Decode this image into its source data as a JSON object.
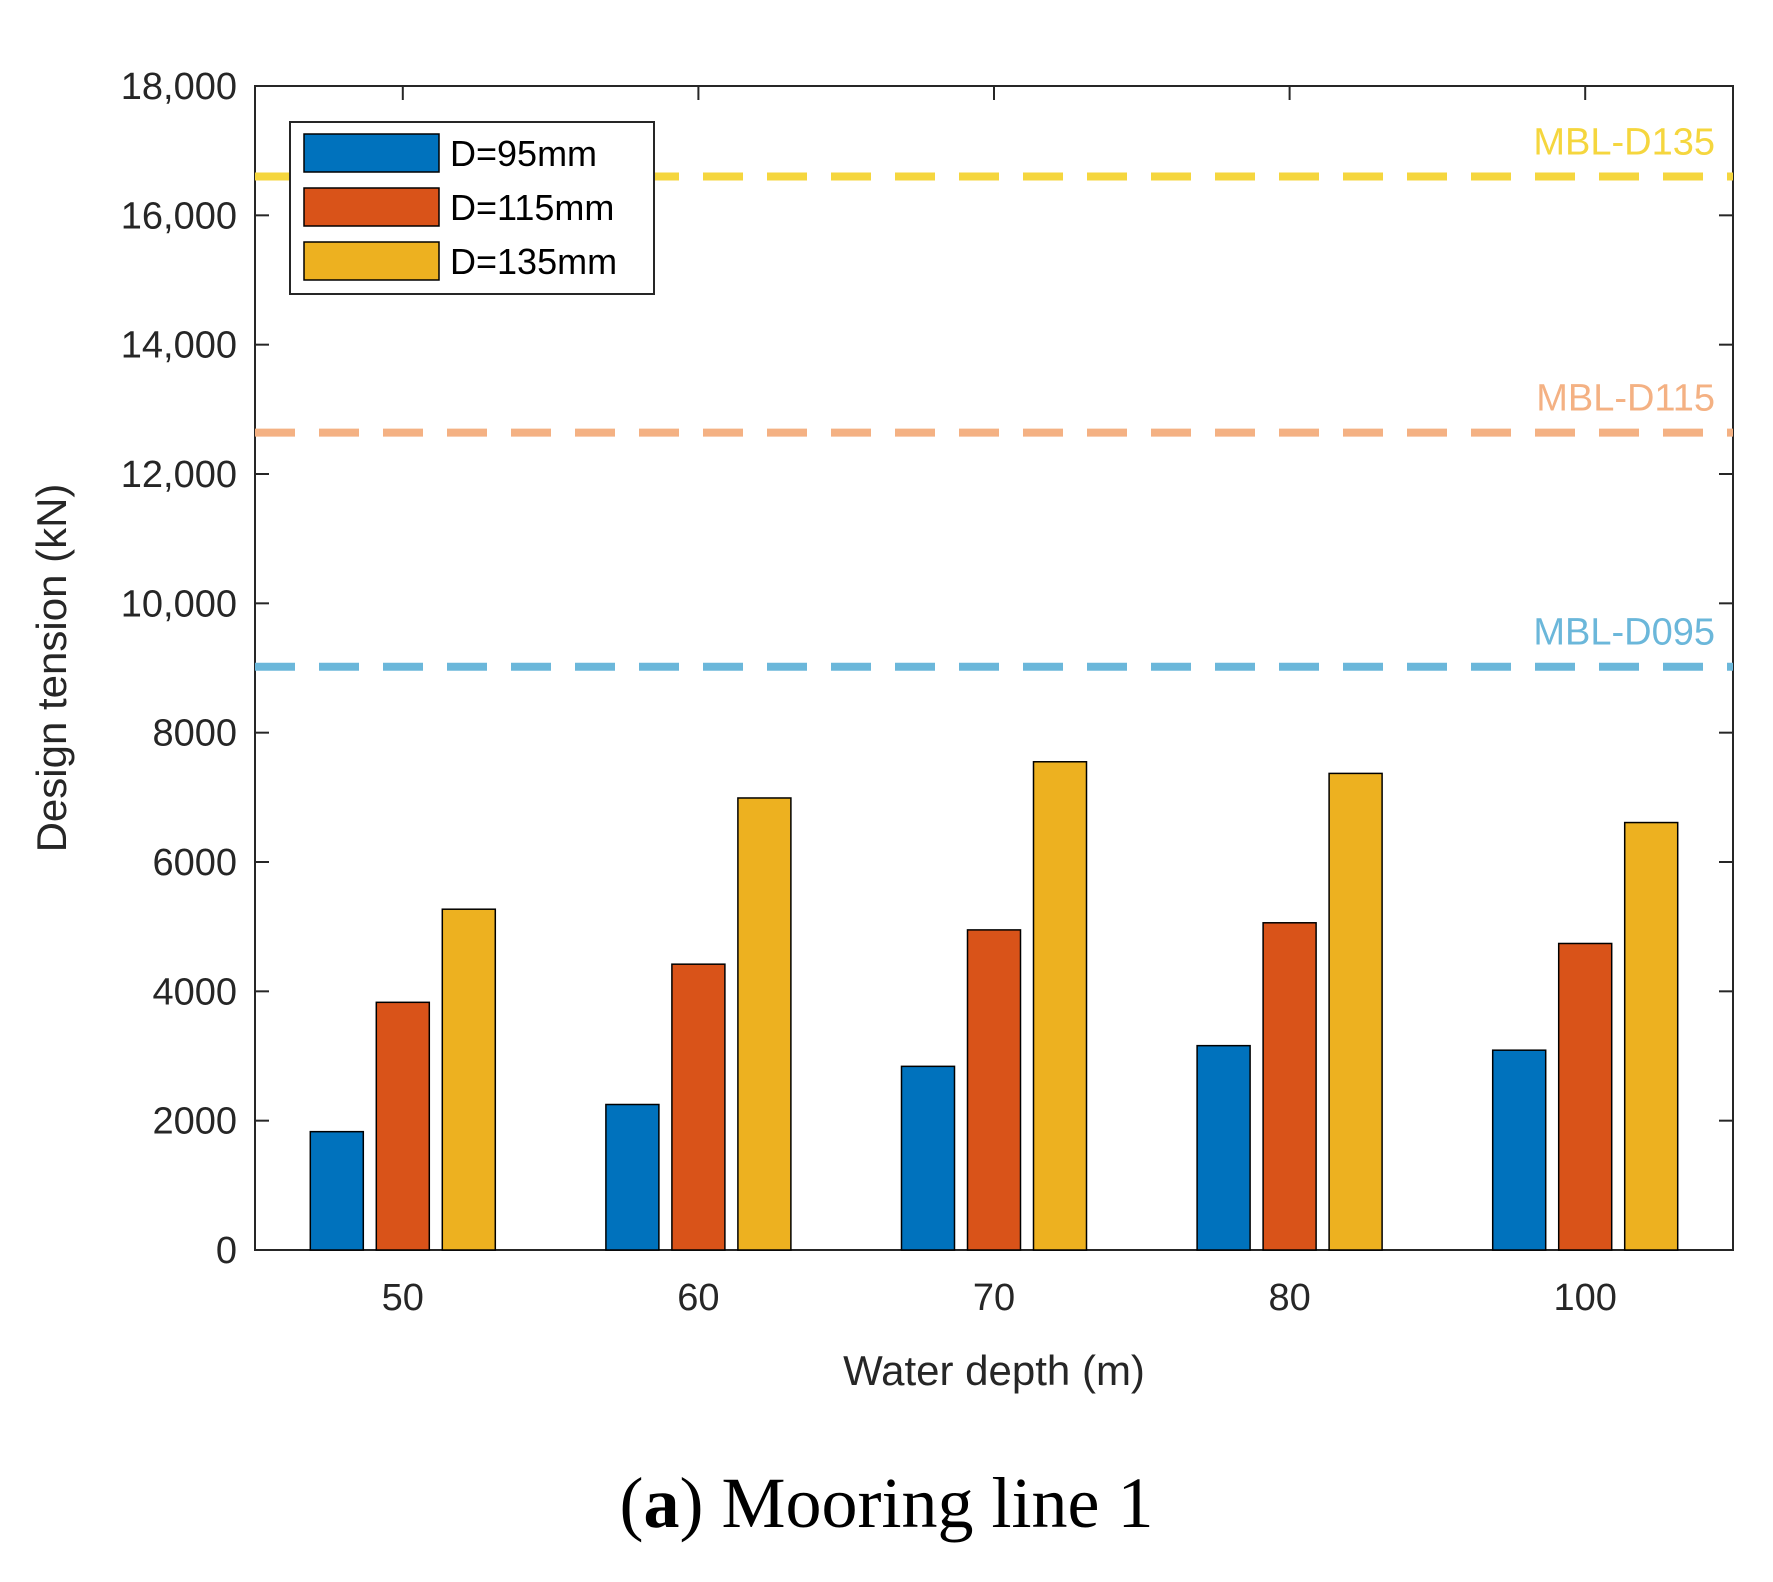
{
  "chart_data": {
    "type": "bar",
    "categories": [
      "50",
      "60",
      "70",
      "80",
      "100"
    ],
    "series": [
      {
        "name": "D=95mm",
        "color": "#0072BD",
        "values": [
          1830,
          2250,
          2840,
          3160,
          3090
        ]
      },
      {
        "name": "D=115mm",
        "color": "#D95319",
        "values": [
          3830,
          4420,
          4950,
          5060,
          4740
        ]
      },
      {
        "name": "D=135mm",
        "color": "#EDB120",
        "values": [
          5270,
          6990,
          7550,
          7370,
          6610
        ]
      }
    ],
    "reference_lines": [
      {
        "label": "MBL-D135",
        "value": 16600,
        "color": "#F5D63E"
      },
      {
        "label": "MBL-D115",
        "value": 12640,
        "color": "#F4B183"
      },
      {
        "label": "MBL-D095",
        "value": 9020,
        "color": "#6BB7DA"
      }
    ],
    "xlabel": "Water depth (m)",
    "ylabel": "Design tension (kN)",
    "ylim": [
      0,
      18000
    ],
    "yticks": [
      0,
      2000,
      4000,
      6000,
      8000,
      10000,
      12000,
      14000,
      16000,
      18000
    ],
    "ytick_labels": [
      "0",
      "2000",
      "4000",
      "6000",
      "8000",
      "10,000",
      "12,000",
      "14,000",
      "16,000",
      "18,000"
    ],
    "legend_position": "top-left",
    "grid": false
  },
  "caption": {
    "letter": "a",
    "text": "Mooring line 1"
  }
}
